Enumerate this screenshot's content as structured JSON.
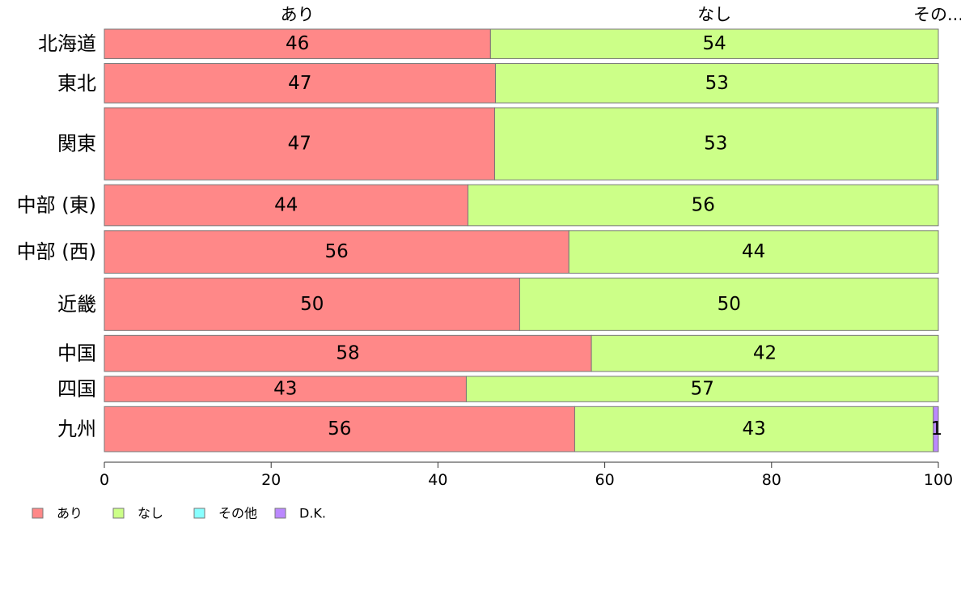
{
  "chart_data": {
    "type": "bar",
    "orientation": "horizontal",
    "stacked": true,
    "categories": [
      "北海道",
      "東北",
      "関東",
      "中部 (東)",
      "中部 (西)",
      "近畿",
      "中国",
      "四国",
      "九州"
    ],
    "series": [
      {
        "name": "あり",
        "color": "#ff8888",
        "values": [
          46.3,
          46.9,
          46.8,
          43.6,
          55.7,
          49.8,
          58.4,
          43.4,
          56.4
        ]
      },
      {
        "name": "なし",
        "color": "#ccff88",
        "values": [
          53.7,
          53.1,
          53.0,
          56.4,
          44.3,
          50.2,
          41.6,
          56.6,
          43.0
        ]
      },
      {
        "name": "その他",
        "color": "#88ffff",
        "values": [
          0,
          0,
          0.2,
          0,
          0,
          0,
          0,
          0,
          0
        ]
      },
      {
        "name": "D.K.",
        "color": "#bb88ff",
        "values": [
          0,
          0,
          0,
          0,
          0,
          0,
          0,
          0,
          0.6
        ]
      }
    ],
    "value_labels": [
      [
        "46",
        "54",
        "",
        ""
      ],
      [
        "47",
        "53",
        "",
        ""
      ],
      [
        "47",
        "53",
        "",
        ""
      ],
      [
        "44",
        "56",
        "",
        ""
      ],
      [
        "56",
        "44",
        "",
        ""
      ],
      [
        "50",
        "50",
        "",
        ""
      ],
      [
        "58",
        "42",
        "",
        ""
      ],
      [
        "43",
        "57",
        "",
        ""
      ],
      [
        "56",
        "43",
        "",
        "1"
      ]
    ],
    "row_weights": [
      36,
      48,
      88,
      50,
      52,
      64,
      44,
      31,
      55
    ],
    "top_labels": [
      "あり",
      "なし",
      "その..."
    ],
    "xlim": [
      0,
      100
    ],
    "xticks": [
      "0",
      "20",
      "40",
      "60",
      "80",
      "100"
    ],
    "grid": false,
    "legend_position": "bottom-left"
  }
}
